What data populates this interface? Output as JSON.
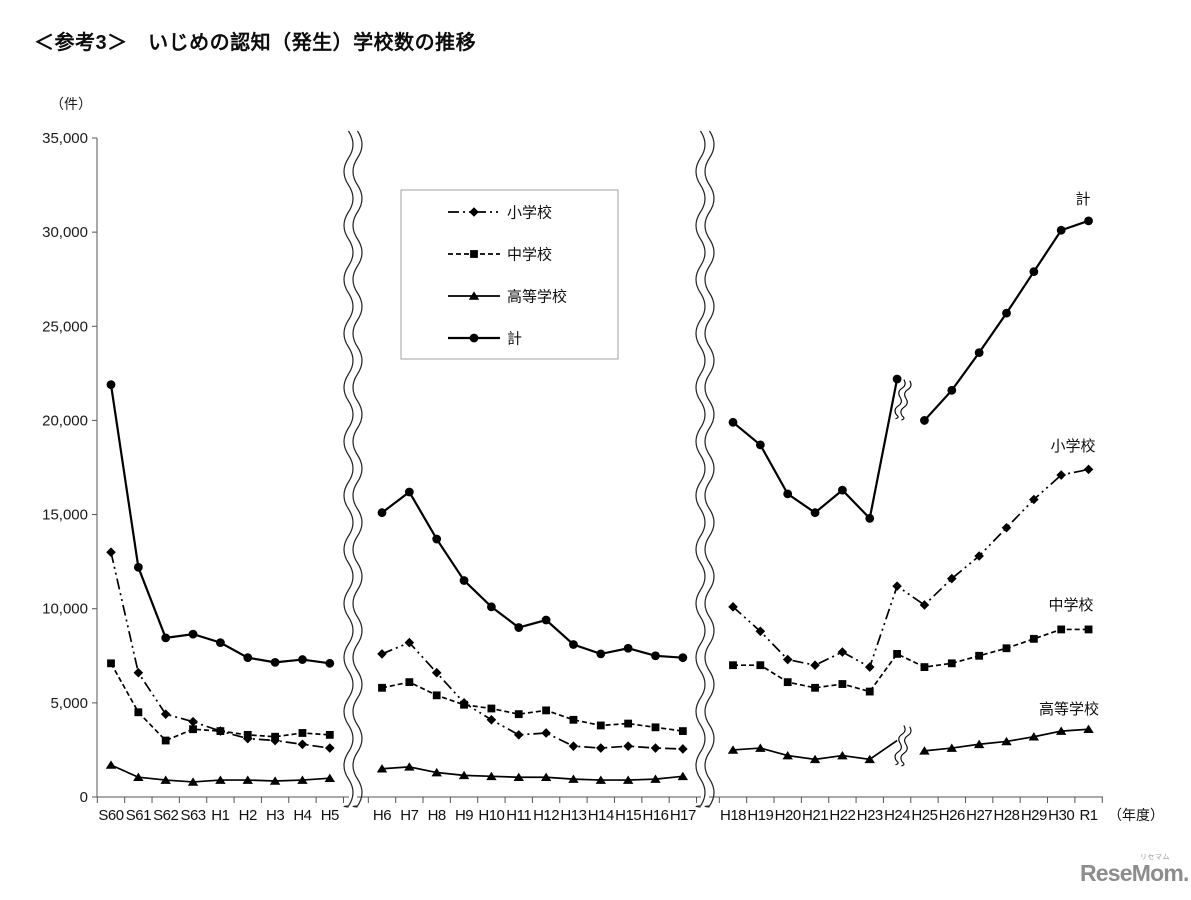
{
  "page": {
    "title": "＜参考3＞　いじめの認知（発生）学校数の推移",
    "unit_label": "（件）",
    "axis_suffix": "（年度）",
    "logo": {
      "text": "ReseMom.",
      "ruby": "リセマム"
    }
  },
  "chart_data": {
    "type": "line",
    "title": "いじめの認知（発生）学校数の推移",
    "ylabel": "（件）",
    "ylim": [
      0,
      35000
    ],
    "grid": false,
    "legend_position": "upper-left-box",
    "ytick_values": [
      0,
      5000,
      10000,
      15000,
      20000,
      25000,
      30000,
      35000
    ],
    "ytick_labels": [
      "0",
      "5,000",
      "10,000",
      "15,000",
      "20,000",
      "25,000",
      "30,000",
      "35,000"
    ],
    "legend": [
      "小学校",
      "中学校",
      "高等学校",
      "計"
    ],
    "right_labels": {
      "計": "計",
      "小学校": "小学校",
      "中学校": "中学校",
      "高等学校": "高等学校"
    },
    "axis_break_between_sections": true,
    "sections": [
      {
        "categories": [
          "S60",
          "S61",
          "S62",
          "S63",
          "H1",
          "H2",
          "H3",
          "H4",
          "H5"
        ],
        "series": {
          "小学校": [
            13000,
            6600,
            4400,
            4000,
            3500,
            3100,
            3000,
            2800,
            2600
          ],
          "中学校": [
            7100,
            4500,
            3000,
            3600,
            3500,
            3300,
            3200,
            3400,
            3300
          ],
          "高等学校": [
            1700,
            1050,
            900,
            800,
            900,
            900,
            850,
            900,
            1000
          ],
          "計": [
            21900,
            12200,
            8450,
            8650,
            8200,
            7400,
            7150,
            7300,
            7100
          ]
        }
      },
      {
        "categories": [
          "H6",
          "H7",
          "H8",
          "H9",
          "H10",
          "H11",
          "H12",
          "H13",
          "H14",
          "H15",
          "H16",
          "H17"
        ],
        "series": {
          "小学校": [
            7600,
            8200,
            6600,
            5000,
            4100,
            3300,
            3400,
            2700,
            2600,
            2700,
            2600,
            2550
          ],
          "中学校": [
            5800,
            6100,
            5400,
            4900,
            4700,
            4400,
            4600,
            4100,
            3800,
            3900,
            3700,
            3500
          ],
          "高等学校": [
            1500,
            1600,
            1300,
            1150,
            1100,
            1050,
            1050,
            950,
            900,
            900,
            950,
            1100
          ],
          "計": [
            15100,
            16200,
            13700,
            11500,
            10100,
            9000,
            9400,
            8100,
            7600,
            7900,
            7500,
            7400
          ]
        }
      },
      {
        "categories": [
          "H18",
          "H19",
          "H20",
          "H21",
          "H22",
          "H23",
          "H24",
          "H25",
          "H26",
          "H27",
          "H28",
          "H29",
          "H30",
          "R1"
        ],
        "series": {
          "小学校": [
            10100,
            8800,
            7300,
            7000,
            7700,
            6900,
            11200,
            10200,
            11600,
            12800,
            14300,
            15800,
            17100,
            17400
          ],
          "中学校": [
            7000,
            7000,
            6100,
            5800,
            6000,
            5600,
            7600,
            6900,
            7100,
            7500,
            7900,
            8400,
            8900,
            8900
          ],
          "高等学校": [
            2500,
            2600,
            2200,
            2000,
            2200,
            2000,
            3000,
            2450,
            2600,
            2800,
            2950,
            3200,
            3500,
            3600
          ],
          "計": [
            19900,
            18700,
            16100,
            15100,
            16300,
            14800,
            22200,
            20000,
            21600,
            23600,
            25700,
            27900,
            30100,
            30600
          ]
        },
        "break_after": {
          "計": 6,
          "高等学校": 6
        },
        "hidden_markers": {
          "高等学校": [
            6
          ]
        }
      }
    ]
  }
}
